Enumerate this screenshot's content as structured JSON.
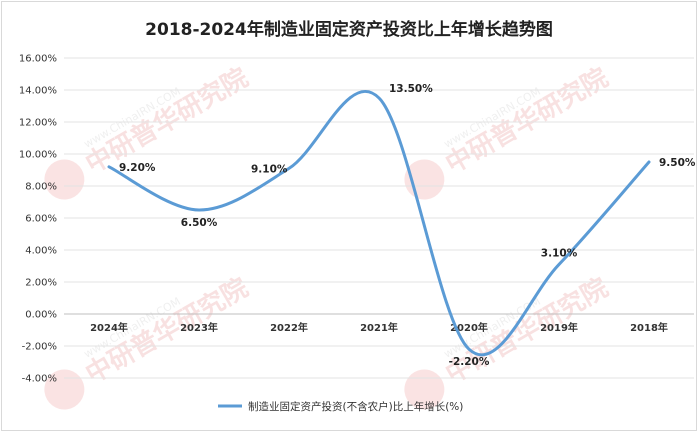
{
  "chart_data": {
    "type": "line",
    "title": "2018-2024年制造业固定资产投资比上年增长趋势图",
    "categories": [
      "2024年",
      "2023年",
      "2022年",
      "2021年",
      "2020年",
      "2019年",
      "2018年"
    ],
    "series": [
      {
        "name": "制造业固定资产投资(不含农户)比上年增长(%)",
        "values": [
          9.2,
          6.5,
          9.1,
          13.5,
          -2.2,
          3.1,
          9.5
        ],
        "labels": [
          "9.20%",
          "6.50%",
          "9.10%",
          "13.50%",
          "-2.20%",
          "3.10%",
          "9.50%"
        ],
        "color": "#5b9bd5"
      }
    ],
    "yticks": [
      "16.00%",
      "14.00%",
      "12.00%",
      "10.00%",
      "8.00%",
      "6.00%",
      "4.00%",
      "2.00%",
      "0.00%",
      "-2.00%",
      "-4.00%"
    ],
    "ylim": [
      -4,
      16
    ],
    "grid": true,
    "legend_position": "bottom",
    "watermark": "中研普华研究院 www.ChinaIRN.COM"
  }
}
